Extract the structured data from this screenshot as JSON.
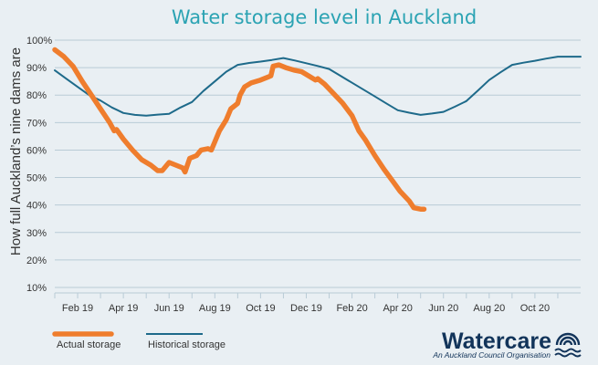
{
  "colors": {
    "background": "#e9eff3",
    "grid": "#b9cbd6",
    "title": "#2ba3b3",
    "actual": "#ef7d2d",
    "historical": "#1e6a8a",
    "brand": "#12345a"
  },
  "logo": {
    "name": "Watercare",
    "tagline": "An Auckland Council Organisation",
    "icon": "wave-rings-icon"
  },
  "chart_data": {
    "type": "line",
    "title": "Water storage level in Auckland",
    "xlabel": "",
    "ylabel": "How full Auckland’s nine dams are",
    "ylim": [
      10,
      100
    ],
    "y_ticks": [
      "100%",
      "90%",
      "80%",
      "70%",
      "60%",
      "50%",
      "40%",
      "30%",
      "20%",
      "10%"
    ],
    "xlim": [
      0,
      23
    ],
    "x_ticks": [
      {
        "x": 1,
        "label": "Feb 19"
      },
      {
        "x": 3,
        "label": "Apr 19"
      },
      {
        "x": 5,
        "label": "Jun 19"
      },
      {
        "x": 7,
        "label": "Aug 19"
      },
      {
        "x": 9,
        "label": "Oct 19"
      },
      {
        "x": 11,
        "label": "Dec 19"
      },
      {
        "x": 13,
        "label": "Feb 20"
      },
      {
        "x": 15,
        "label": "Apr 20"
      },
      {
        "x": 17,
        "label": "Jun 20"
      },
      {
        "x": 19,
        "label": "Aug 20"
      },
      {
        "x": 21,
        "label": "Oct 20"
      }
    ],
    "grid": true,
    "legend_position": "bottom-left",
    "series": [
      {
        "name": "Actual storage",
        "color": "#ef7d2d",
        "points": [
          [
            0.0,
            96.5
          ],
          [
            0.4,
            94
          ],
          [
            0.8,
            90.5
          ],
          [
            1.2,
            85
          ],
          [
            1.6,
            80
          ],
          [
            2.0,
            75
          ],
          [
            2.4,
            70
          ],
          [
            2.6,
            67
          ],
          [
            2.7,
            67.5
          ],
          [
            3.0,
            64
          ],
          [
            3.4,
            60
          ],
          [
            3.8,
            56.5
          ],
          [
            4.2,
            54.5
          ],
          [
            4.5,
            52.5
          ],
          [
            4.7,
            52.5
          ],
          [
            5.0,
            55.5
          ],
          [
            5.3,
            54.5
          ],
          [
            5.6,
            53.5
          ],
          [
            5.7,
            52
          ],
          [
            5.9,
            57
          ],
          [
            6.2,
            58
          ],
          [
            6.4,
            60
          ],
          [
            6.7,
            60.5
          ],
          [
            6.85,
            60
          ],
          [
            7.0,
            63
          ],
          [
            7.2,
            67
          ],
          [
            7.5,
            71
          ],
          [
            7.7,
            75
          ],
          [
            8.0,
            77
          ],
          [
            8.1,
            80
          ],
          [
            8.3,
            83
          ],
          [
            8.6,
            84.5
          ],
          [
            9.0,
            85.5
          ],
          [
            9.3,
            86.5
          ],
          [
            9.45,
            87
          ],
          [
            9.55,
            90.5
          ],
          [
            9.8,
            91
          ],
          [
            10.1,
            90
          ],
          [
            10.5,
            89
          ],
          [
            10.8,
            88.5
          ],
          [
            11.1,
            87
          ],
          [
            11.4,
            85.5
          ],
          [
            11.5,
            86
          ],
          [
            11.8,
            84
          ],
          [
            12.2,
            80.5
          ],
          [
            12.6,
            77
          ],
          [
            13.0,
            72.5
          ],
          [
            13.3,
            67
          ],
          [
            13.6,
            63.5
          ],
          [
            14.0,
            58
          ],
          [
            14.4,
            53
          ],
          [
            14.8,
            48.5
          ],
          [
            15.1,
            45
          ],
          [
            15.5,
            41.5
          ],
          [
            15.7,
            39
          ],
          [
            16.0,
            38.5
          ],
          [
            16.15,
            38.5
          ]
        ]
      },
      {
        "name": "Historical storage",
        "color": "#1e6a8a",
        "points": [
          [
            0.0,
            89
          ],
          [
            0.5,
            86
          ],
          [
            1.0,
            83
          ],
          [
            1.5,
            80
          ],
          [
            2.0,
            78
          ],
          [
            2.5,
            75.5
          ],
          [
            3.0,
            73.5
          ],
          [
            3.5,
            72.8
          ],
          [
            4.0,
            72.5
          ],
          [
            4.5,
            72.9
          ],
          [
            5.0,
            73.2
          ],
          [
            5.5,
            75.5
          ],
          [
            6.0,
            77.5
          ],
          [
            6.5,
            81.5
          ],
          [
            7.0,
            85
          ],
          [
            7.5,
            88.5
          ],
          [
            8.0,
            91
          ],
          [
            8.5,
            91.7
          ],
          [
            9.0,
            92.2
          ],
          [
            9.5,
            92.8
          ],
          [
            10.0,
            93.5
          ],
          [
            10.5,
            92.6
          ],
          [
            11.0,
            91.6
          ],
          [
            11.5,
            90.6
          ],
          [
            12.0,
            89.5
          ],
          [
            12.5,
            87
          ],
          [
            13.0,
            84.5
          ],
          [
            13.5,
            82
          ],
          [
            14.0,
            79.5
          ],
          [
            14.5,
            77
          ],
          [
            15.0,
            74.5
          ],
          [
            15.5,
            73.6
          ],
          [
            16.0,
            72.8
          ],
          [
            16.5,
            73.3
          ],
          [
            17.0,
            73.9
          ],
          [
            17.5,
            75.8
          ],
          [
            18.0,
            77.8
          ],
          [
            18.5,
            81.6
          ],
          [
            19.0,
            85.5
          ],
          [
            19.5,
            88.3
          ],
          [
            20.0,
            91
          ],
          [
            20.5,
            91.8
          ],
          [
            21.0,
            92.5
          ],
          [
            21.5,
            93.3
          ],
          [
            22.0,
            94
          ],
          [
            23.0,
            94
          ]
        ]
      }
    ]
  }
}
